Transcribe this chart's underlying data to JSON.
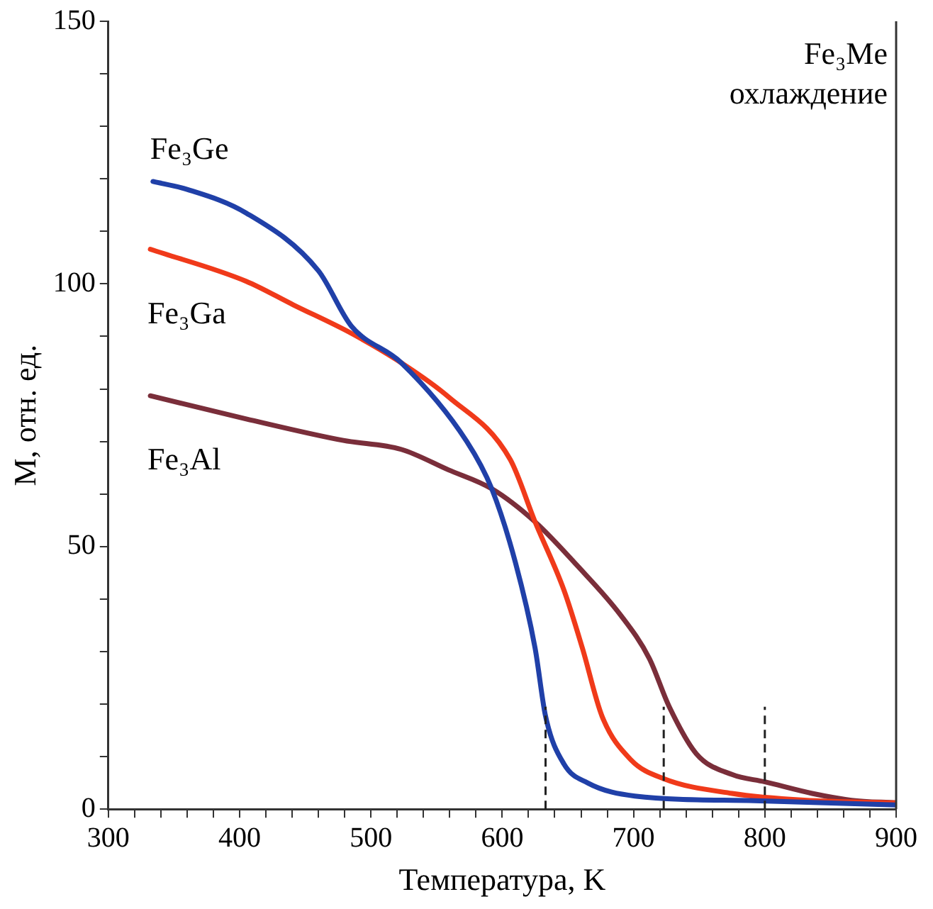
{
  "chart_data": {
    "type": "line",
    "xlabel": "Температура, K",
    "ylabel": "M, отн. ед.",
    "annotations": [
      "Fe₃Me",
      "охлаждение"
    ],
    "xlim": [
      300,
      900
    ],
    "ylim": [
      0,
      150
    ],
    "xticks": [
      300,
      {
        "value": 320,
        "label": null
      },
      {
        "value": 340,
        "label": null
      },
      {
        "value": 360,
        "label": null
      },
      {
        "value": 380,
        "label": null
      },
      400,
      {
        "value": 420,
        "label": null
      },
      {
        "value": 440,
        "label": null
      },
      {
        "value": 460,
        "label": null
      },
      {
        "value": 480,
        "label": null
      },
      500,
      {
        "value": 520,
        "label": null
      },
      {
        "value": 540,
        "label": null
      },
      {
        "value": 560,
        "label": null
      },
      {
        "value": 580,
        "label": null
      },
      600,
      {
        "value": 620,
        "label": null
      },
      {
        "value": 640,
        "label": null
      },
      {
        "value": 660,
        "label": null
      },
      {
        "value": 680,
        "label": null
      },
      700,
      {
        "value": 720,
        "label": null
      },
      {
        "value": 740,
        "label": null
      },
      {
        "value": 760,
        "label": null
      },
      {
        "value": 780,
        "label": null
      },
      800,
      {
        "value": 820,
        "label": null
      },
      {
        "value": 840,
        "label": null
      },
      {
        "value": 860,
        "label": null
      },
      {
        "value": 880,
        "label": null
      },
      900
    ],
    "yticks": [
      0,
      {
        "value": 10,
        "label": null
      },
      {
        "value": 20,
        "label": null
      },
      {
        "value": 30,
        "label": null
      },
      {
        "value": 40,
        "label": null
      },
      50,
      {
        "value": 60,
        "label": null
      },
      {
        "value": 70,
        "label": null
      },
      {
        "value": 80,
        "label": null
      },
      {
        "value": 90,
        "label": null
      },
      100,
      {
        "value": 110,
        "label": null
      },
      {
        "value": 120,
        "label": null
      },
      {
        "value": 130,
        "label": null
      },
      {
        "value": 140,
        "label": null
      },
      150
    ],
    "grid": false,
    "legend": false,
    "marker": "none",
    "line_style": "solid",
    "ref_lines": [
      {
        "axis": "x",
        "value": 633,
        "label": null,
        "color": "#222222",
        "line_style": "dashed"
      },
      {
        "axis": "x",
        "value": 723,
        "label": null,
        "color": "#222222",
        "line_style": "dashed"
      },
      {
        "axis": "x",
        "value": 800,
        "label": null,
        "color": "#222222",
        "line_style": "dashed"
      }
    ],
    "series": [
      {
        "name": "Fe₃Ge",
        "color": "#2040a8",
        "x": [
          334,
          360,
          405,
          460,
          485,
          523,
          573,
          592,
          610,
          625,
          633,
          647,
          665,
          701,
          792,
          900
        ],
        "values": [
          119.5,
          118,
          113.5,
          102.5,
          92,
          85,
          70,
          61,
          47,
          30.7,
          17.7,
          8.6,
          5,
          2.5,
          1.6,
          0.8
        ]
      },
      {
        "name": "Fe₃Ga",
        "color": "#f03a1a",
        "x": [
          332,
          405,
          441,
          485,
          523,
          559,
          606,
          625,
          647,
          661,
          676,
          698,
          723,
          775,
          830,
          900
        ],
        "values": [
          106.6,
          100.5,
          96,
          90.6,
          85,
          78.5,
          66.6,
          54.7,
          41.7,
          30.7,
          17.7,
          9.4,
          5.8,
          3,
          1.7,
          1.2
        ]
      },
      {
        "name": "Fe₃Al",
        "color": "#7a2e3a",
        "x": [
          332,
          405,
          479,
          523,
          559,
          592,
          625,
          657,
          690,
          712,
          727,
          748,
          775,
          800,
          836,
          866,
          900
        ],
        "values": [
          78.7,
          74.3,
          70.2,
          68.5,
          64.6,
          61,
          54.7,
          46.4,
          37,
          28.7,
          19.6,
          10.5,
          6.6,
          5.2,
          3,
          1.7,
          1.2
        ]
      }
    ]
  }
}
